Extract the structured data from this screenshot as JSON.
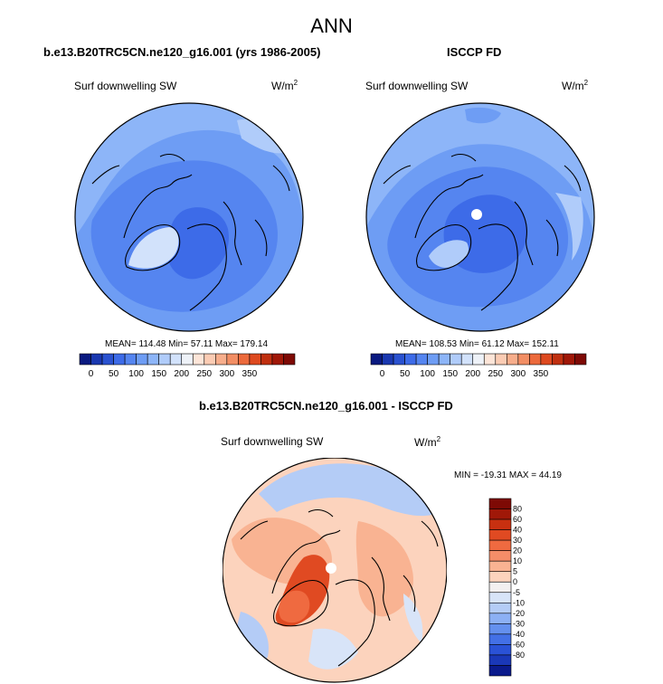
{
  "page": {
    "title": "ANN"
  },
  "panels": [
    {
      "heading": "b.e13.B20TRC5CN.ne120_g16.001 (yrs 1986-2005)",
      "variable": "Surf downwelling SW",
      "units_base": "W/m",
      "units_exp": "2",
      "stats": "MEAN= 114.48  Min=  57.11  Max= 179.14"
    },
    {
      "heading": "ISCCP FD",
      "variable": "Surf downwelling SW",
      "units_base": "W/m",
      "units_exp": "2",
      "stats": "MEAN= 108.53  Min=  61.12  Max= 152.11"
    },
    {
      "heading": "b.e13.B20TRC5CN.ne120_g16.001 - ISCCP FD",
      "variable": "Surf downwelling SW",
      "units_base": "W/m",
      "units_exp": "2",
      "stats": "MIN = -19.31 MAX =  44.19"
    }
  ],
  "colorbar_abs": {
    "colors": [
      "#0a1a80",
      "#1a38b0",
      "#2a52d0",
      "#3d6be8",
      "#5585f0",
      "#6e9df4",
      "#8db5f8",
      "#b0ccfa",
      "#d2e2fb",
      "#eef2f8",
      "#fde5d8",
      "#fbccb4",
      "#f7ae8c",
      "#f28e64",
      "#ec6a3c",
      "#de4a20",
      "#c03010",
      "#a01808",
      "#7e0a05"
    ],
    "ticks": [
      "0",
      "50",
      "100",
      "150",
      "200",
      "250",
      "300",
      "350"
    ]
  },
  "colorbar_diff": {
    "colors": [
      "#7e0a05",
      "#a01808",
      "#c83010",
      "#e04a22",
      "#ef6a40",
      "#f58d68",
      "#f9b392",
      "#fcd3bd",
      "#f3f0f0",
      "#d8e4f8",
      "#b4ccf6",
      "#8cb0f4",
      "#6490ee",
      "#4370e6",
      "#2a52d6",
      "#1a38b8",
      "#0a1a8c"
    ],
    "ticks": [
      "80",
      "60",
      "40",
      "30",
      "20",
      "10",
      "5",
      "0",
      "-5",
      "-10",
      "-20",
      "-30",
      "-40",
      "-60",
      "-80"
    ]
  }
}
